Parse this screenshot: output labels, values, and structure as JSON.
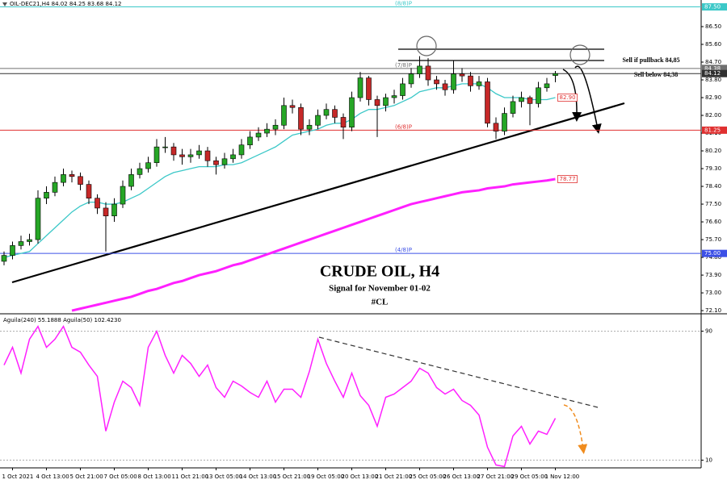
{
  "chart_data": [
    {
      "type": "candlestick",
      "title": "CRUDE OIL, H4",
      "subtitle": "Signal for November 01-02",
      "tag": "#CL",
      "legend_text": "OIL-DEC21,H4 84.02 84.25 83.68 84.12",
      "annotations": [
        "Sell if pullback 84,85",
        "Sell below 84,38"
      ],
      "up_color": "#26a626",
      "down_color": "#c62828",
      "open": [
        74.6,
        74.9,
        75.4,
        75.6,
        75.7,
        77.8,
        78.1,
        78.6,
        79.0,
        78.9,
        78.5,
        77.8,
        77.3,
        76.9,
        77.5,
        78.4,
        79.0,
        79.3,
        79.6,
        80.4,
        80.4,
        80.0,
        79.9,
        80.0,
        80.2,
        79.7,
        79.5,
        79.8,
        80.0,
        80.5,
        80.9,
        81.1,
        81.3,
        81.5,
        82.5,
        82.4,
        81.3,
        81.5,
        82.0,
        82.3,
        81.9,
        81.4,
        82.9,
        83.9,
        82.8,
        82.5,
        82.9,
        83.0,
        83.6,
        84.1,
        84.5,
        83.8,
        83.6,
        83.3,
        84.1,
        84.0,
        83.5,
        83.7,
        81.6,
        81.2,
        82.1,
        82.7,
        82.9,
        82.6,
        83.4,
        84.02
      ],
      "high": [
        75.1,
        75.6,
        75.9,
        76.0,
        78.2,
        78.4,
        78.9,
        79.3,
        79.2,
        79.1,
        78.7,
        78.0,
        77.6,
        77.8,
        78.7,
        79.3,
        79.6,
        79.9,
        80.8,
        80.9,
        80.6,
        80.3,
        80.3,
        80.5,
        80.4,
        79.9,
        80.1,
        80.3,
        80.8,
        81.2,
        81.4,
        81.6,
        81.8,
        82.9,
        82.8,
        82.6,
        81.8,
        82.3,
        82.6,
        82.5,
        82.1,
        83.2,
        84.2,
        84.0,
        83.0,
        83.1,
        83.3,
        83.9,
        84.4,
        85.0,
        84.9,
        84.0,
        83.8,
        84.8,
        84.4,
        84.2,
        84.0,
        83.9,
        81.9,
        82.4,
        83.0,
        83.2,
        83.0,
        83.7,
        83.9,
        84.25
      ],
      "low": [
        74.4,
        74.7,
        75.2,
        75.4,
        75.5,
        77.5,
        77.9,
        78.4,
        78.6,
        78.2,
        77.5,
        77.0,
        75.1,
        76.6,
        77.3,
        78.2,
        78.8,
        79.1,
        79.4,
        80.1,
        79.7,
        79.5,
        79.6,
        79.8,
        79.4,
        79.0,
        79.3,
        79.6,
        79.8,
        80.3,
        80.7,
        80.9,
        81.0,
        81.3,
        82.1,
        81.0,
        81.0,
        81.3,
        81.8,
        81.6,
        80.8,
        81.2,
        82.7,
        82.5,
        80.9,
        82.2,
        82.6,
        82.8,
        83.4,
        83.9,
        83.5,
        83.3,
        83.0,
        83.1,
        83.7,
        83.2,
        83.3,
        81.4,
        80.8,
        81.0,
        81.9,
        82.4,
        81.5,
        82.4,
        83.2,
        83.68
      ],
      "close": [
        74.9,
        75.4,
        75.6,
        75.7,
        77.8,
        78.1,
        78.6,
        79.0,
        78.9,
        78.5,
        77.8,
        77.3,
        76.9,
        77.5,
        78.4,
        79.0,
        79.3,
        79.6,
        80.4,
        80.4,
        80.0,
        79.9,
        80.0,
        80.2,
        79.7,
        79.5,
        79.8,
        80.0,
        80.5,
        80.9,
        81.1,
        81.3,
        81.5,
        82.5,
        82.4,
        81.3,
        81.5,
        82.0,
        82.3,
        81.9,
        81.4,
        82.9,
        83.9,
        82.8,
        82.5,
        82.9,
        83.0,
        83.6,
        84.1,
        84.5,
        83.8,
        83.6,
        83.3,
        84.1,
        84.0,
        83.5,
        83.7,
        81.6,
        81.2,
        82.1,
        82.7,
        82.9,
        82.6,
        83.4,
        83.6,
        84.12
      ],
      "overlays": [
        {
          "color": "#3cc8c8",
          "end_label": "82.90",
          "values": [
            74.8,
            74.9,
            75.0,
            75.1,
            75.5,
            75.9,
            76.3,
            76.7,
            77.1,
            77.4,
            77.6,
            77.6,
            77.5,
            77.5,
            77.6,
            77.8,
            78.0,
            78.3,
            78.6,
            78.9,
            79.1,
            79.2,
            79.3,
            79.4,
            79.4,
            79.4,
            79.5,
            79.5,
            79.6,
            79.8,
            80.0,
            80.2,
            80.4,
            80.7,
            81.0,
            81.1,
            81.2,
            81.3,
            81.5,
            81.6,
            81.6,
            81.8,
            82.1,
            82.3,
            82.3,
            82.4,
            82.5,
            82.7,
            82.9,
            83.2,
            83.3,
            83.4,
            83.4,
            83.5,
            83.6,
            83.6,
            83.6,
            83.4,
            83.1,
            82.9,
            82.9,
            82.9,
            82.8,
            82.8,
            82.8,
            82.9
          ]
        },
        {
          "color": "#ff20ff",
          "end_label": "78.77",
          "values": [
            null,
            null,
            null,
            null,
            null,
            null,
            null,
            null,
            72.1,
            72.2,
            72.3,
            72.4,
            72.5,
            72.6,
            72.7,
            72.8,
            72.95,
            73.1,
            73.2,
            73.35,
            73.5,
            73.6,
            73.75,
            73.9,
            74.0,
            74.1,
            74.25,
            74.4,
            74.5,
            74.65,
            74.8,
            74.95,
            75.1,
            75.25,
            75.4,
            75.55,
            75.7,
            75.85,
            76.0,
            76.15,
            76.3,
            76.45,
            76.6,
            76.75,
            76.9,
            77.05,
            77.2,
            77.35,
            77.5,
            77.6,
            77.7,
            77.8,
            77.9,
            78.0,
            78.1,
            78.15,
            78.2,
            78.3,
            78.35,
            78.4,
            78.5,
            78.55,
            78.6,
            78.65,
            78.7,
            78.77
          ]
        }
      ],
      "levels": [
        {
          "value": 87.5,
          "label": "87.50",
          "tag": "(8/8)P",
          "color": "#3cc8c8"
        },
        {
          "value": 84.38,
          "label": "84.38",
          "tag": "(7/8)P",
          "color": "#707070"
        },
        {
          "value": 84.12,
          "label": "84.12",
          "color": "#303030"
        },
        {
          "value": 81.25,
          "label": "81.25",
          "tag": "(6/8)P",
          "color": "#e03030"
        },
        {
          "value": 75.0,
          "label": "75.00",
          "tag": "(4/8)P",
          "color": "#3c50e6"
        }
      ],
      "ylim": [
        71.98,
        87.85
      ],
      "yticks": [
        {
          "value": 86.5,
          "label": "86.50"
        },
        {
          "value": 85.6,
          "label": "85.60"
        },
        {
          "value": 84.7,
          "label": "84.70"
        },
        {
          "value": 83.8,
          "label": "83.80"
        },
        {
          "value": 82.9,
          "label": "82.90"
        },
        {
          "value": 82.0,
          "label": "82.00"
        },
        {
          "value": 81.1,
          "label": "81.10"
        },
        {
          "value": 80.2,
          "label": "80.20"
        },
        {
          "value": 79.3,
          "label": "79.30"
        },
        {
          "value": 78.4,
          "label": "78.40"
        },
        {
          "value": 77.5,
          "label": "77.50"
        },
        {
          "value": 76.6,
          "label": "76.60"
        },
        {
          "value": 75.7,
          "label": "75.70"
        },
        {
          "value": 74.8,
          "label": "74.80"
        },
        {
          "value": 73.9,
          "label": "73.90"
        },
        {
          "value": 73.0,
          "label": "73.00"
        },
        {
          "value": 72.1,
          "label": "72.10"
        }
      ]
    },
    {
      "type": "line",
      "legend_text": "Aguila(240) 55.1888 Aguila(50) 102.4230",
      "color": "#ff20ff",
      "categories": [
        null,
        "1 Oct 2021",
        null,
        null,
        null,
        "4 Oct 13:00",
        null,
        null,
        null,
        "5 Oct 21:00",
        null,
        null,
        null,
        "7 Oct 05:00",
        null,
        null,
        null,
        "8 Oct 13:00",
        null,
        null,
        null,
        "11 Oct 21:00",
        null,
        null,
        null,
        "13 Oct 05:00",
        null,
        null,
        null,
        "14 Oct 13:00",
        null,
        null,
        null,
        "15 Oct 21:00",
        null,
        null,
        null,
        "19 Oct 05:00",
        null,
        null,
        null,
        "20 Oct 13:00",
        null,
        null,
        null,
        "21 Oct 21:00",
        null,
        null,
        null,
        "25 Oct 05:00",
        null,
        null,
        null,
        "26 Oct 13:00",
        null,
        null,
        null,
        "27 Oct 21:00",
        null,
        null,
        null,
        "29 Oct 05:00",
        null,
        null,
        null,
        "1 Nov 12:00"
      ],
      "values": [
        69,
        80,
        64,
        85,
        93,
        80,
        85,
        93,
        80,
        77,
        69,
        62,
        28,
        46,
        59,
        55,
        44,
        80,
        90,
        75,
        64,
        75,
        70,
        62,
        69,
        55,
        49,
        59,
        56,
        52,
        49,
        59,
        46,
        54,
        54,
        49,
        65,
        85,
        70,
        59,
        49,
        64,
        50,
        44,
        31,
        49,
        51,
        55,
        59,
        67,
        64,
        55,
        51,
        54,
        47,
        44,
        38,
        18,
        7,
        6,
        25,
        31,
        20,
        28,
        26,
        36
      ],
      "ylim": [
        5.2,
        100.3
      ],
      "yticks": [
        90,
        10
      ]
    }
  ]
}
